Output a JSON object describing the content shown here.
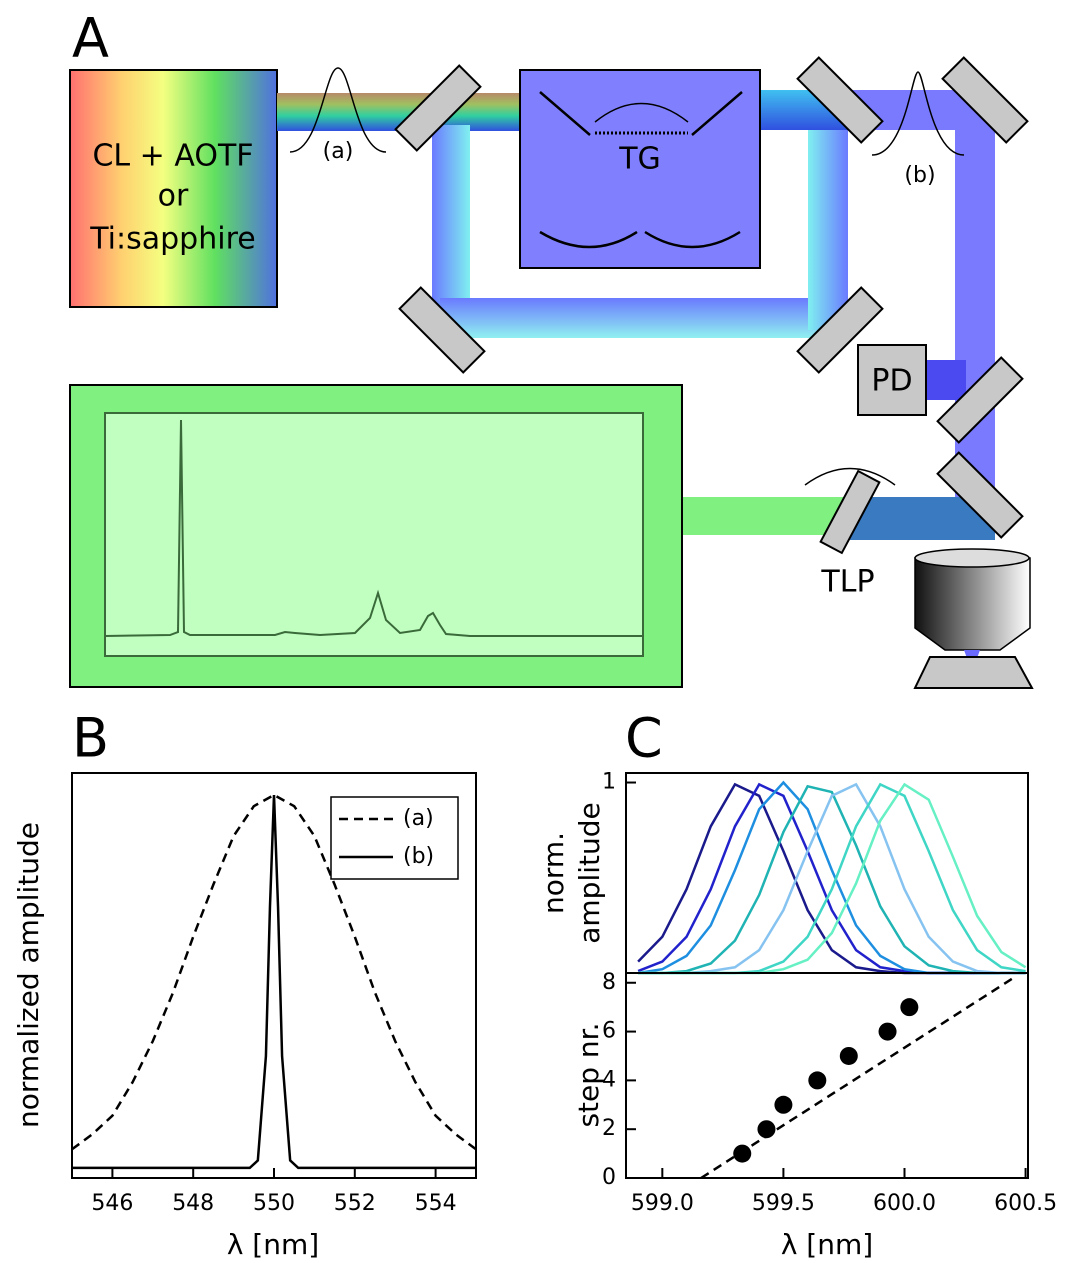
{
  "panel_a": {
    "label": "A",
    "source_lines": [
      "CL + AOTF",
      "or",
      "Ti:sapphire"
    ],
    "pulse_a": "(a)",
    "grating": "TG",
    "pulse_b": "(b)",
    "detector": "PD",
    "lens": "TLP"
  },
  "chart_data": [
    {
      "type": "line",
      "label": "B",
      "xlabel": "λ [nm]",
      "ylabel": "normalized amplitude",
      "xlim": [
        545,
        555
      ],
      "xticks": [
        546,
        548,
        550,
        552,
        554
      ],
      "ylim": [
        -0.027,
        1.059
      ],
      "legend": "upper right",
      "series": [
        {
          "name": "(a)",
          "color": "#000000",
          "dash": true,
          "x": [
            545,
            545.5,
            546,
            546.5,
            547,
            547.5,
            548,
            548.5,
            549,
            549.5,
            550,
            550.5,
            551,
            551.5,
            552,
            552.5,
            553,
            553.5,
            554,
            554.5,
            555
          ],
          "values": [
            0.05,
            0.09,
            0.14,
            0.23,
            0.34,
            0.47,
            0.62,
            0.76,
            0.89,
            0.97,
            1,
            0.97,
            0.89,
            0.76,
            0.62,
            0.47,
            0.34,
            0.23,
            0.14,
            0.09,
            0.05
          ]
        },
        {
          "name": "(b)",
          "color": "#000000",
          "dash": false,
          "x": [
            545,
            549.4,
            549.6,
            549.8,
            549.9,
            550,
            550.1,
            550.2,
            550.4,
            550.6,
            555
          ],
          "values": [
            0,
            0,
            0.02,
            0.3,
            0.7,
            1,
            0.7,
            0.3,
            0.02,
            0,
            0
          ]
        }
      ]
    },
    {
      "type": "line",
      "label": "C",
      "ylabel": [
        "norm.",
        "amplitude"
      ],
      "xlim": [
        598.85,
        600.51
      ],
      "ylim": [
        0,
        1.05
      ],
      "yticks": [
        1
      ],
      "x": [
        598.9,
        599.0,
        599.1,
        599.2,
        599.3,
        599.4,
        599.5,
        599.6,
        599.7,
        599.8,
        599.9,
        600.0,
        600.1,
        600.2,
        600.3,
        600.4,
        600.5
      ],
      "series": [
        {
          "color": "#1a1a8c",
          "values": [
            0.06,
            0.19,
            0.44,
            0.77,
            0.99,
            0.93,
            0.64,
            0.33,
            0.12,
            0.03,
            0.01,
            0,
            0,
            0,
            0,
            0,
            0
          ]
        },
        {
          "color": "#2222cc",
          "values": [
            0.01,
            0.06,
            0.19,
            0.44,
            0.77,
            0.99,
            0.93,
            0.64,
            0.33,
            0.12,
            0.03,
            0.01,
            0,
            0,
            0,
            0,
            0
          ]
        },
        {
          "color": "#1e8fe0",
          "values": [
            0,
            0.02,
            0.09,
            0.25,
            0.54,
            0.86,
            1,
            0.86,
            0.54,
            0.25,
            0.09,
            0.02,
            0,
            0,
            0,
            0,
            0
          ]
        },
        {
          "color": "#1fb3b3",
          "values": [
            0,
            0,
            0.01,
            0.05,
            0.17,
            0.41,
            0.74,
            0.98,
            0.95,
            0.67,
            0.35,
            0.14,
            0.04,
            0.01,
            0,
            0,
            0
          ]
        },
        {
          "color": "#86c3f0",
          "values": [
            0,
            0,
            0,
            0.01,
            0.03,
            0.12,
            0.33,
            0.64,
            0.93,
            0.99,
            0.77,
            0.44,
            0.19,
            0.06,
            0.01,
            0,
            0
          ]
        },
        {
          "color": "#3fd6c6",
          "values": [
            0,
            0,
            0,
            0,
            0,
            0.01,
            0.06,
            0.19,
            0.44,
            0.77,
            0.99,
            0.93,
            0.64,
            0.33,
            0.12,
            0.03,
            0.01
          ]
        },
        {
          "color": "#66f0c4",
          "values": [
            0,
            0,
            0,
            0,
            0,
            0,
            0.02,
            0.07,
            0.21,
            0.47,
            0.8,
            0.99,
            0.91,
            0.61,
            0.3,
            0.11,
            0.03
          ]
        }
      ]
    },
    {
      "type": "scatter",
      "xlabel": "λ [nm]",
      "ylabel": "step nr.",
      "xlim": [
        598.85,
        600.51
      ],
      "xticks": [
        {
          "value": 599.0,
          "label": "599.0"
        },
        {
          "value": 599.5,
          "label": "599.5"
        },
        {
          "value": 600.0,
          "label": "600.0"
        },
        {
          "value": 600.5,
          "label": "600.5"
        }
      ],
      "ylim": [
        0,
        8.4
      ],
      "yticks": [
        0,
        2,
        4,
        6,
        8
      ],
      "color": "#000000",
      "x": [
        599.33,
        599.43,
        599.5,
        599.64,
        599.77,
        599.93,
        600.02
      ],
      "values": [
        1,
        2,
        3,
        4,
        5,
        6,
        7
      ],
      "fit": {
        "x": [
          599.16,
          600.45
        ],
        "values": [
          0,
          8.2
        ],
        "dash": true
      }
    }
  ]
}
